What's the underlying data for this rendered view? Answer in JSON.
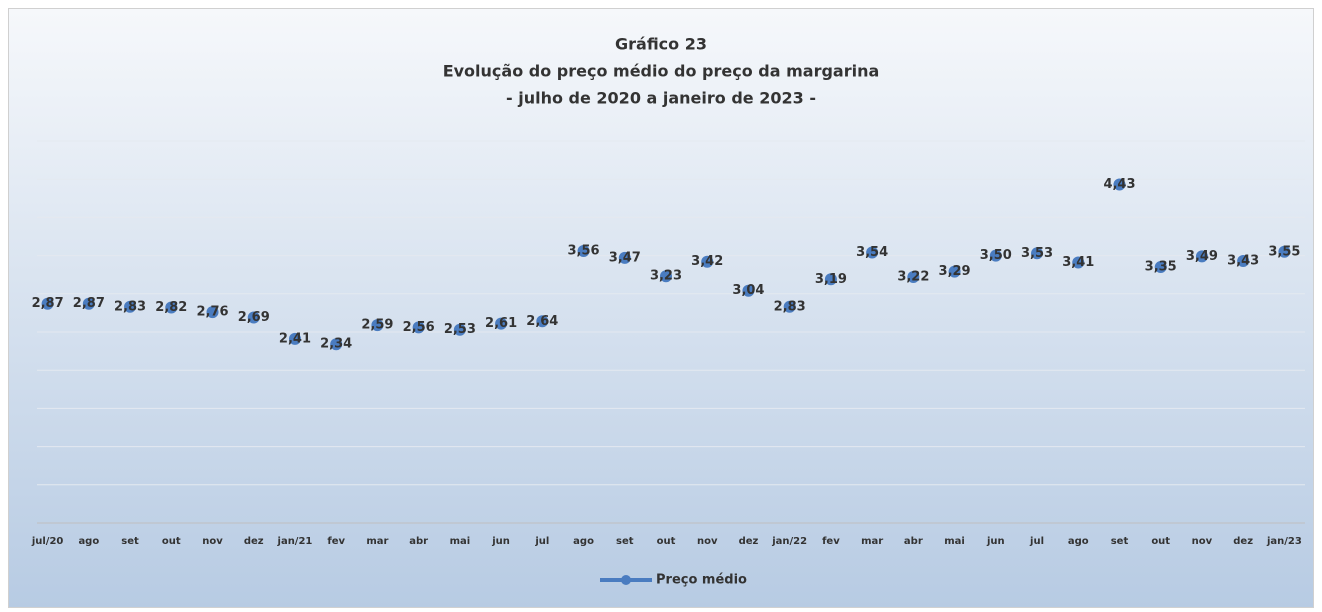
{
  "chart_data": {
    "type": "line",
    "title": "Gráfico 23",
    "subtitle": [
      "Evolução do preço médio do preço da margarina",
      "- julho de 2020 a janeiro de 2023 -"
    ],
    "categories": [
      "jul/20",
      "ago",
      "set",
      "out",
      "nov",
      "dez",
      "jan/21",
      "fev",
      "mar",
      "abr",
      "mai",
      "jun",
      "jul",
      "ago",
      "set",
      "out",
      "nov",
      "dez",
      "jan/22",
      "fev",
      "mar",
      "abr",
      "mai",
      "jun",
      "jul",
      "ago",
      "set",
      "out",
      "nov",
      "dez",
      "jan/23"
    ],
    "series": [
      {
        "name": "Preço médio",
        "color": "#4a7cc0",
        "values": [
          2.87,
          2.87,
          2.83,
          2.82,
          2.76,
          2.69,
          2.41,
          2.34,
          2.59,
          2.56,
          2.53,
          2.61,
          2.64,
          3.56,
          3.47,
          3.23,
          3.42,
          3.04,
          2.83,
          3.19,
          3.54,
          3.22,
          3.29,
          3.5,
          3.53,
          3.41,
          4.43,
          3.35,
          3.49,
          3.43,
          3.55
        ],
        "value_labels": [
          "2,87",
          "2,87",
          "2,83",
          "2,82",
          "2,76",
          "2,69",
          "2,41",
          "2,34",
          "2,59",
          "2,56",
          "2,53",
          "2,61",
          "2,64",
          "3,56",
          "3,47",
          "3,23",
          "3,42",
          "3,04",
          "2,83",
          "3,19",
          "3,54",
          "3,22",
          "3,29",
          "3,50",
          "3,53",
          "3,41",
          "4,43",
          "3,35",
          "3,49",
          "3,43",
          "3,55"
        ]
      }
    ],
    "ylim": [
      0,
      5
    ],
    "yticks": [
      0,
      0.5,
      1,
      1.5,
      2,
      2.5,
      3,
      3.5,
      4,
      4.5,
      5
    ],
    "grid": true,
    "legend": "bottom"
  }
}
